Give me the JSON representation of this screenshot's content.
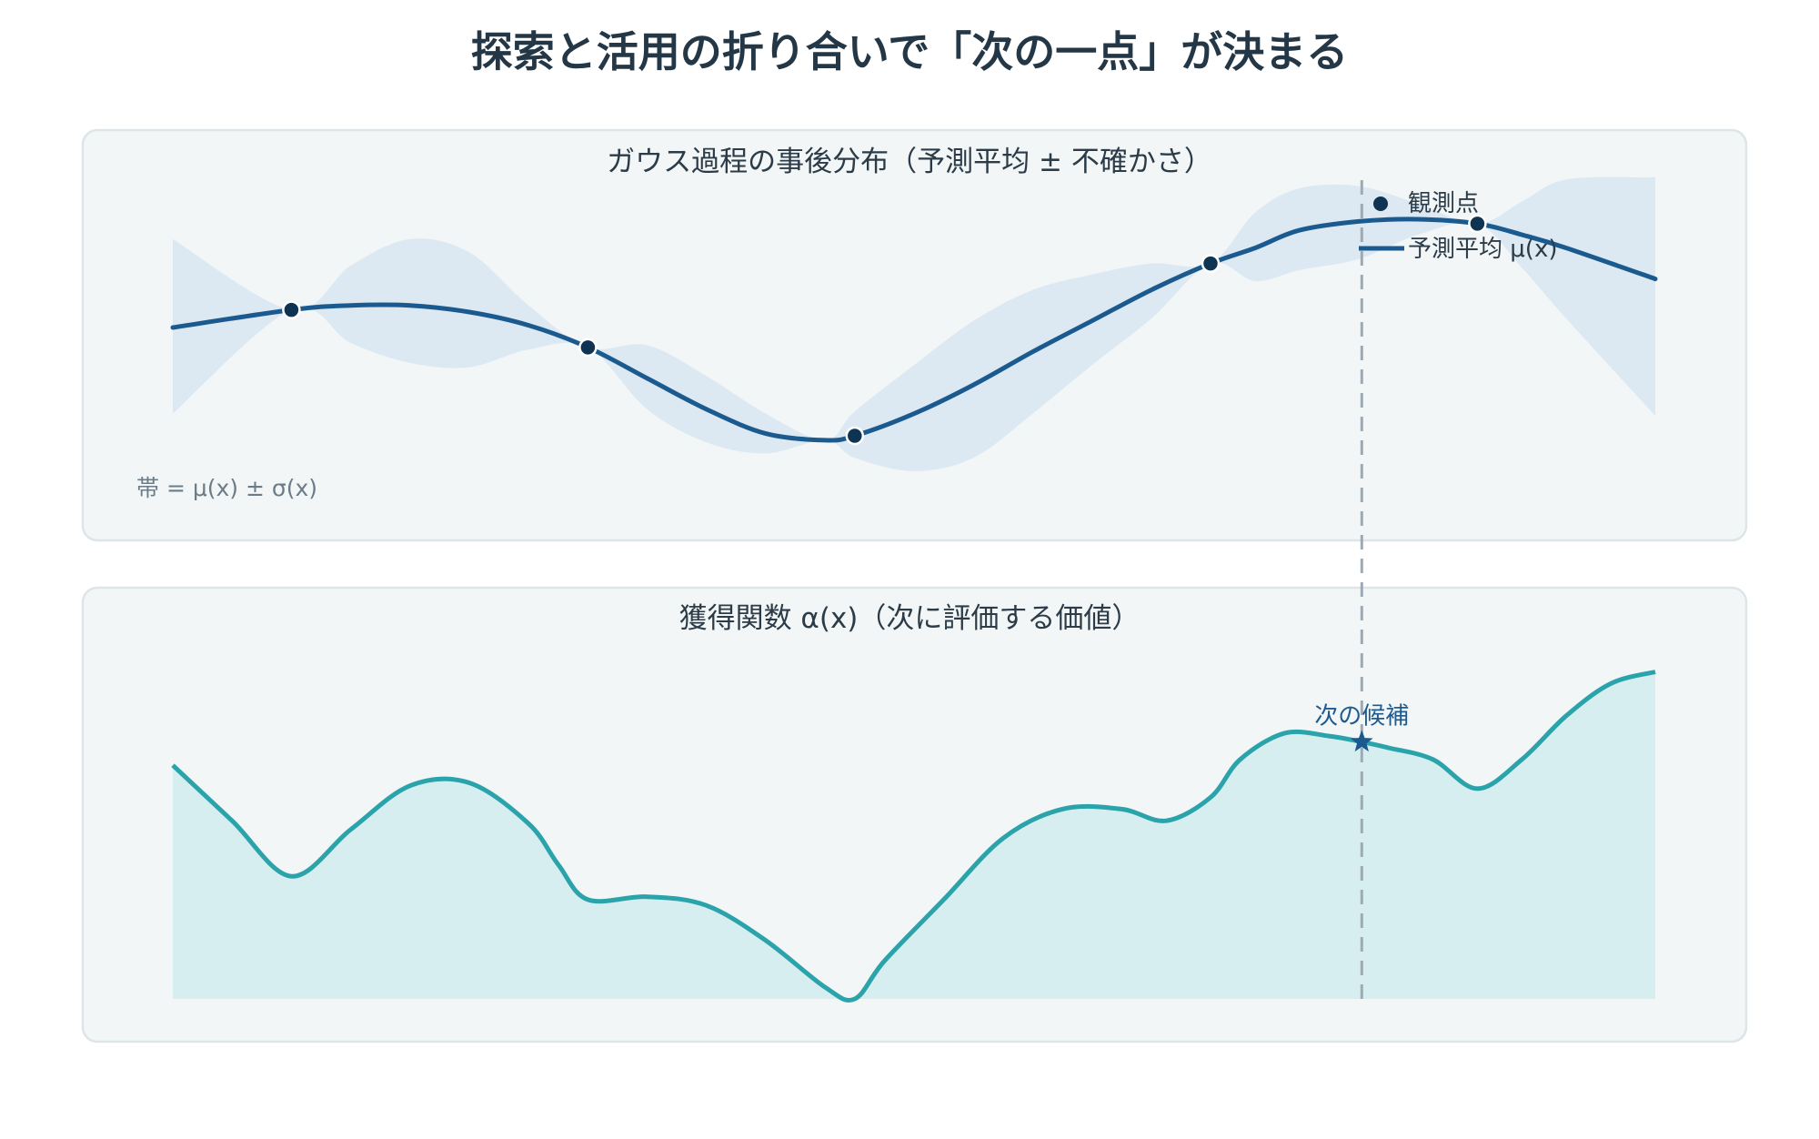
{
  "title": "探索と活用の折り合いで「次の一点」が決まる",
  "colors": {
    "panel_bg": "#f2f6f7",
    "panel_border": "#dde5e8",
    "mean_line": "#1b5a8f",
    "band_fill": "#dde9f2",
    "point": "#0f3352",
    "acq_line": "#2aa3ab",
    "acq_fill": "#d6eef0",
    "guide_line": "#9eaab3"
  },
  "chart_data": [
    {
      "type": "line",
      "title": "ガウス過程の事後分布（予測平均 ± 不確かさ）",
      "note": "帯 = μ(x) ± σ(x)",
      "legend": {
        "observed_label": "観測点",
        "mean_label": "予測平均 μ(x)",
        "placement": "top-right"
      },
      "mean": {
        "x": [
          0,
          0.08,
          0.12,
          0.16,
          0.2,
          0.24,
          0.28,
          0.32,
          0.36,
          0.4,
          0.44,
          0.46,
          0.5,
          0.54,
          0.58,
          0.62,
          0.66,
          0.7,
          0.73,
          0.76,
          0.8,
          0.84,
          0.88,
          0.91,
          0.94,
          1.0
        ],
        "y": [
          0.4,
          0.48,
          0.5,
          0.5,
          0.47,
          0.41,
          0.31,
          0.17,
          0.03,
          -0.08,
          -0.11,
          -0.09,
          0.01,
          0.14,
          0.29,
          0.43,
          0.57,
          0.69,
          0.76,
          0.84,
          0.88,
          0.89,
          0.87,
          0.82,
          0.76,
          0.62
        ]
      },
      "upper": {
        "x": [
          0,
          0.08,
          0.12,
          0.16,
          0.2,
          0.24,
          0.28,
          0.32,
          0.36,
          0.4,
          0.44,
          0.46,
          0.5,
          0.54,
          0.58,
          0.62,
          0.66,
          0.7,
          0.73,
          0.76,
          0.8,
          0.84,
          0.88,
          0.91,
          0.94,
          1.0
        ],
        "y": [
          0.8,
          0.48,
          0.68,
          0.8,
          0.74,
          0.5,
          0.31,
          0.32,
          0.18,
          0.01,
          -0.11,
          0.02,
          0.23,
          0.43,
          0.57,
          0.64,
          0.69,
          0.69,
          0.92,
          1.03,
          1.04,
          0.96,
          0.87,
          0.97,
          1.07,
          1.08
        ]
      },
      "lower": {
        "x": [
          0,
          0.08,
          0.12,
          0.16,
          0.2,
          0.24,
          0.28,
          0.32,
          0.36,
          0.4,
          0.44,
          0.46,
          0.5,
          0.54,
          0.58,
          0.62,
          0.66,
          0.7,
          0.73,
          0.76,
          0.8,
          0.84,
          0.88,
          0.91,
          0.94,
          1.0
        ],
        "y": [
          0.01,
          0.48,
          0.33,
          0.24,
          0.22,
          0.3,
          0.31,
          0.03,
          -0.12,
          -0.17,
          -0.11,
          -0.19,
          -0.25,
          -0.19,
          0.01,
          0.23,
          0.44,
          0.69,
          0.61,
          0.66,
          0.71,
          0.82,
          0.87,
          0.67,
          0.44,
          0.0
        ]
      },
      "observed": {
        "x": [
          0.08,
          0.28,
          0.46,
          0.7,
          0.88
        ],
        "y": [
          0.48,
          0.31,
          -0.09,
          0.69,
          0.87
        ]
      },
      "xlim": [
        0,
        1
      ],
      "ylim": [
        -0.3,
        1.1
      ]
    },
    {
      "type": "area",
      "title": "獲得関数 α(x)（次に評価する価値）",
      "annotation": "次の候補",
      "candidate_x": 0.802,
      "candidate_y": 0.88,
      "x": [
        0,
        0.04,
        0.08,
        0.12,
        0.16,
        0.2,
        0.24,
        0.26,
        0.28,
        0.32,
        0.36,
        0.4,
        0.44,
        0.46,
        0.48,
        0.52,
        0.56,
        0.6,
        0.64,
        0.67,
        0.7,
        0.72,
        0.75,
        0.78,
        0.802,
        0.82,
        0.85,
        0.88,
        0.91,
        0.94,
        0.97,
        1.0
      ],
      "y": [
        0.8,
        0.61,
        0.42,
        0.58,
        0.73,
        0.74,
        0.6,
        0.46,
        0.34,
        0.35,
        0.32,
        0.2,
        0.04,
        0.0,
        0.13,
        0.34,
        0.55,
        0.65,
        0.65,
        0.61,
        0.69,
        0.82,
        0.91,
        0.9,
        0.88,
        0.86,
        0.82,
        0.72,
        0.82,
        0.97,
        1.08,
        1.12
      ],
      "xlim": [
        0,
        1
      ],
      "ylim": [
        0,
        1.24
      ]
    }
  ]
}
